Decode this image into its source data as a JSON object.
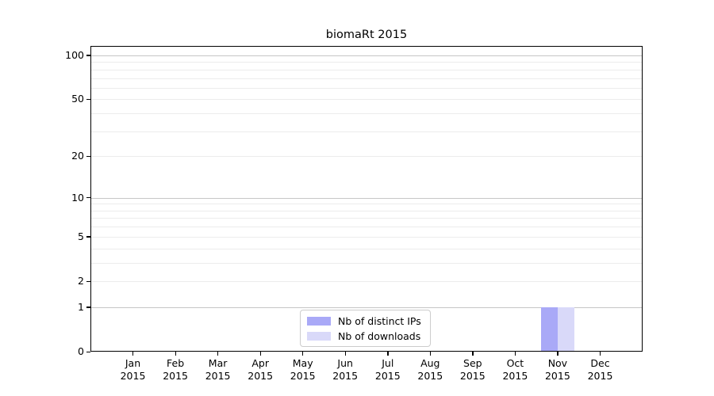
{
  "title": "biomaRt 2015",
  "chart_data": {
    "type": "bar",
    "title": "biomaRt 2015",
    "categories": [
      "Jan",
      "Feb",
      "Mar",
      "Apr",
      "May",
      "Jun",
      "Jul",
      "Aug",
      "Sep",
      "Oct",
      "Nov",
      "Dec"
    ],
    "category_year": "2015",
    "series": [
      {
        "name": "Nb of distinct IPs",
        "color": "#a9a9f7",
        "values": [
          0,
          0,
          0,
          0,
          0,
          0,
          0,
          0,
          0,
          0,
          1,
          0
        ]
      },
      {
        "name": "Nb of downloads",
        "color": "#d9d9f9",
        "values": [
          0,
          0,
          0,
          0,
          0,
          0,
          0,
          0,
          0,
          0,
          1,
          0
        ]
      }
    ],
    "xlabel": "",
    "ylabel": "",
    "y_ticks": [
      0,
      1,
      2,
      5,
      10,
      20,
      50,
      100
    ],
    "y_scale": "log10(1+y)",
    "ylim": [
      0,
      116
    ],
    "grid": "horizontal",
    "minor_gridlines": [
      2,
      3,
      4,
      5,
      6,
      7,
      8,
      9,
      20,
      30,
      40,
      50,
      60,
      70,
      80,
      90
    ],
    "major_gridlines": [
      1,
      10,
      100
    ],
    "legend_position": "inside bottom-center"
  },
  "colors": {
    "bar_distinct_ips": "#a9a9f7",
    "bar_downloads": "#d9d9f9",
    "minor_grid": "#ececec",
    "major_grid": "#c6c6c6",
    "axis": "#000000",
    "legend_border": "#cccccc",
    "background": "#ffffff"
  }
}
